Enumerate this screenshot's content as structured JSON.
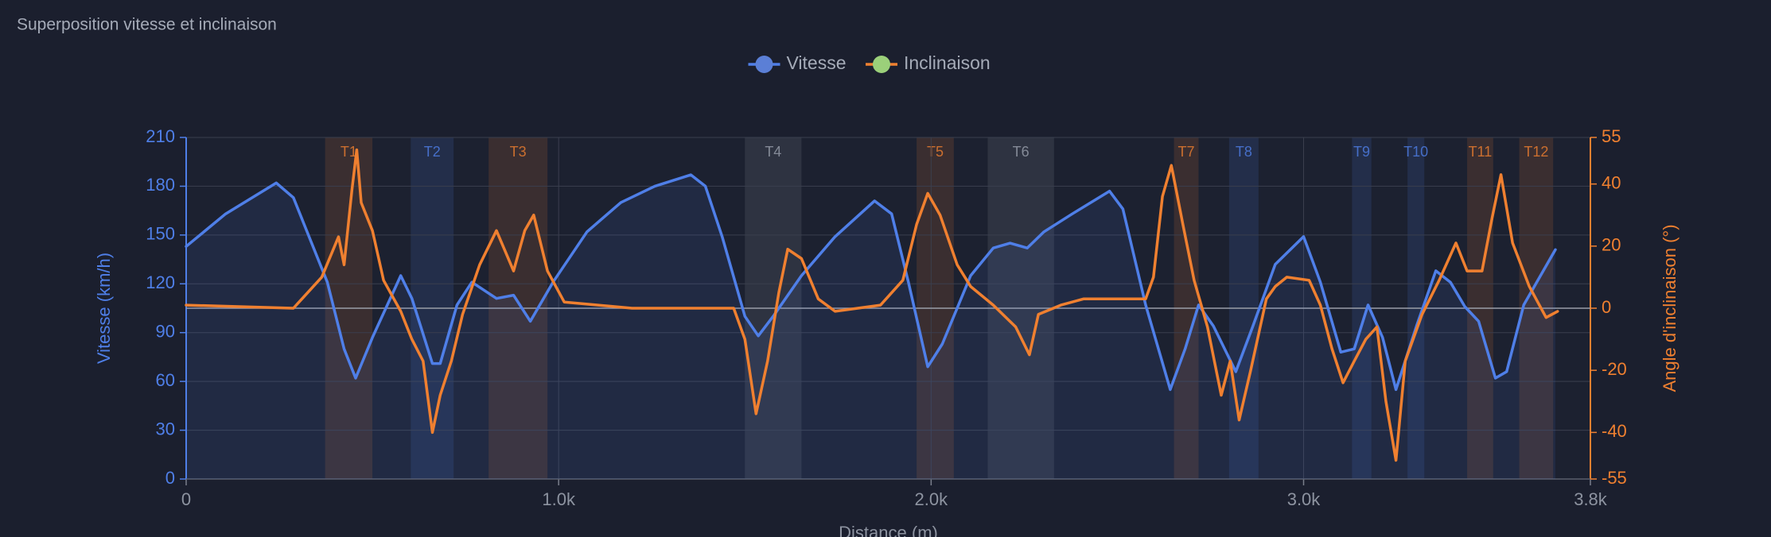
{
  "chart_data": {
    "type": "line",
    "title": "Superposition vitesse et inclinaison",
    "xlabel": "Distance (m)",
    "ylabel": "Vitesse (km/h)",
    "y2label": "Angle d'inclinaison (°)",
    "xlim": [
      0,
      3770
    ],
    "xticks": [
      0,
      {
        "value": 1000,
        "label": "1.0k"
      },
      {
        "value": 2000,
        "label": "2.0k"
      },
      {
        "value": 3000,
        "label": "3.0k"
      },
      {
        "value": 3770,
        "label": "3.8k"
      }
    ],
    "ylim": [
      0,
      210
    ],
    "yticks": [
      0,
      30,
      60,
      90,
      120,
      150,
      180,
      210
    ],
    "y2lim": [
      -55,
      55
    ],
    "y2ticks": [
      -55,
      -40,
      -20,
      0,
      20,
      40,
      55
    ],
    "y2_reference": 0,
    "grid": true,
    "legend": "top",
    "series": [
      {
        "name": "Vitesse",
        "color": "#4f7fe8",
        "legend_marker_color": "#5b7fd6",
        "fill": true,
        "x": [
          0,
          106,
          242,
          288,
          379,
          424,
          455,
          500,
          576,
          606,
          661,
          682,
          727,
          767,
          833,
          879,
          924,
          985,
          1076,
          1167,
          1258,
          1355,
          1394,
          1439,
          1500,
          1536,
          1576,
          1652,
          1742,
          1848,
          1894,
          1939,
          1991,
          2030,
          2106,
          2167,
          2212,
          2258,
          2303,
          2379,
          2479,
          2515,
          2576,
          2642,
          2682,
          2718,
          2758,
          2818,
          2864,
          2924,
          3000,
          3045,
          3100,
          3136,
          3173,
          3212,
          3248,
          3303,
          3355,
          3394,
          3433,
          3470,
          3515,
          3545,
          3591,
          3676
        ],
        "values": [
          143,
          163,
          182,
          173,
          121,
          80,
          62,
          87,
          125,
          111,
          71,
          71,
          107,
          121,
          111,
          113,
          97,
          121,
          152,
          170,
          180,
          187,
          180,
          149,
          100,
          88,
          100,
          125,
          149,
          171,
          163,
          121,
          69,
          83,
          125,
          142,
          145,
          142,
          152,
          163,
          177,
          166,
          107,
          55,
          80,
          107,
          94,
          66,
          94,
          132,
          149,
          121,
          78,
          80,
          107,
          87,
          55,
          94,
          128,
          121,
          106,
          97,
          62,
          66,
          107,
          141
        ]
      },
      {
        "name": "Inclinaison",
        "color": "#f08030",
        "legend_marker_color": "#9bd07a",
        "axis": "y2",
        "x": [
          0,
          288,
          364,
          409,
          424,
          445,
          458,
          470,
          500,
          530,
          576,
          606,
          636,
          661,
          682,
          712,
          742,
          788,
          833,
          879,
          909,
          933,
          970,
          1015,
          1197,
          1470,
          1500,
          1530,
          1561,
          1591,
          1615,
          1652,
          1697,
          1742,
          1864,
          1924,
          1961,
          1991,
          2024,
          2070,
          2106,
          2167,
          2227,
          2264,
          2288,
          2348,
          2409,
          2576,
          2597,
          2621,
          2645,
          2676,
          2706,
          2742,
          2779,
          2803,
          2827,
          2858,
          2900,
          2924,
          2955,
          3015,
          3045,
          3076,
          3106,
          3136,
          3167,
          3197,
          3221,
          3248,
          3273,
          3318,
          3364,
          3409,
          3439,
          3479,
          3506,
          3530,
          3561,
          3606,
          3651,
          3682
        ],
        "values": [
          1,
          0,
          10,
          23,
          14,
          38,
          51,
          34,
          25,
          9,
          -1,
          -10,
          -17,
          -40,
          -28,
          -17,
          -2,
          14,
          25,
          12,
          25,
          30,
          12,
          2,
          0,
          0,
          -10,
          -34,
          -17,
          5,
          19,
          16,
          3,
          -1,
          1,
          9,
          27,
          37,
          30,
          14,
          7,
          1,
          -6,
          -15,
          -2,
          1,
          3,
          3,
          10,
          36,
          46,
          27,
          9,
          -6,
          -28,
          -17,
          -36,
          -20,
          3,
          7,
          10,
          9,
          1,
          -13,
          -24,
          -17,
          -10,
          -6,
          -30,
          -49,
          -17,
          -2,
          9,
          21,
          12,
          12,
          29,
          43,
          21,
          7,
          -3,
          -1
        ]
      }
    ],
    "turns": [
      {
        "name": "T1",
        "start": 373,
        "end": 500,
        "color": "#f08030"
      },
      {
        "name": "T2",
        "start": 603,
        "end": 718,
        "color": "#4f7fe8"
      },
      {
        "name": "T3",
        "start": 812,
        "end": 970,
        "color": "#f08030"
      },
      {
        "name": "T4",
        "start": 1500,
        "end": 1652,
        "color": "#9aa0ad"
      },
      {
        "name": "T5",
        "start": 1961,
        "end": 2061,
        "color": "#f08030"
      },
      {
        "name": "T6",
        "start": 2152,
        "end": 2330,
        "color": "#9aa0ad"
      },
      {
        "name": "T7",
        "start": 2652,
        "end": 2718,
        "color": "#f08030"
      },
      {
        "name": "T8",
        "start": 2800,
        "end": 2879,
        "color": "#4f7fe8"
      },
      {
        "name": "T9",
        "start": 3130,
        "end": 3182,
        "color": "#4f7fe8"
      },
      {
        "name": "T10",
        "start": 3279,
        "end": 3324,
        "color": "#4f7fe8"
      },
      {
        "name": "T11",
        "start": 3439,
        "end": 3509,
        "color": "#f08030"
      },
      {
        "name": "T12",
        "start": 3579,
        "end": 3670,
        "color": "#f08030"
      }
    ]
  }
}
